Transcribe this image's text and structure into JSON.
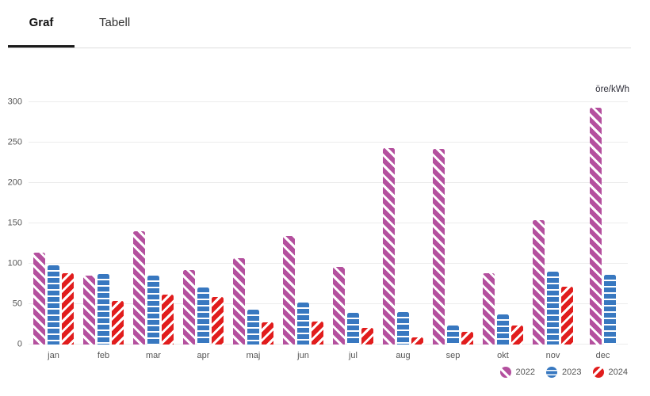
{
  "tabs": [
    {
      "label": "Graf",
      "active": true
    },
    {
      "label": "Tabell",
      "active": false
    }
  ],
  "chart_data": {
    "type": "bar",
    "title": "",
    "unit_label": "öre/kWh",
    "categories": [
      "jan",
      "feb",
      "mar",
      "apr",
      "maj",
      "jun",
      "jul",
      "aug",
      "sep",
      "okt",
      "nov",
      "dec"
    ],
    "series": [
      {
        "name": "2022",
        "color": "#b4509e",
        "pattern": "diagonal-down-stripes",
        "values": [
          114,
          85,
          140,
          92,
          107,
          134,
          96,
          243,
          242,
          88,
          154,
          293
        ]
      },
      {
        "name": "2023",
        "color": "#3878c0",
        "pattern": "horizontal-stripes",
        "values": [
          98,
          87,
          85,
          71,
          43,
          52,
          39,
          40,
          24,
          37,
          90,
          86
        ]
      },
      {
        "name": "2024",
        "color": "#e11d1d",
        "pattern": "diagonal-up-stripes",
        "values": [
          88,
          54,
          62,
          59,
          27,
          28,
          21,
          9,
          16,
          24,
          72,
          null
        ]
      }
    ],
    "ylim": [
      0,
      300
    ],
    "ytick_step": 50,
    "yticks": [
      "0",
      "50",
      "100",
      "150",
      "200",
      "250",
      "300"
    ],
    "grid": true,
    "legend_position": "bottom-right"
  },
  "colors": {
    "grid": "#ececec",
    "axis_text": "#555555",
    "tab_active": "#121212",
    "tab_underline": "#1a1a1a",
    "divider": "#dedede"
  }
}
